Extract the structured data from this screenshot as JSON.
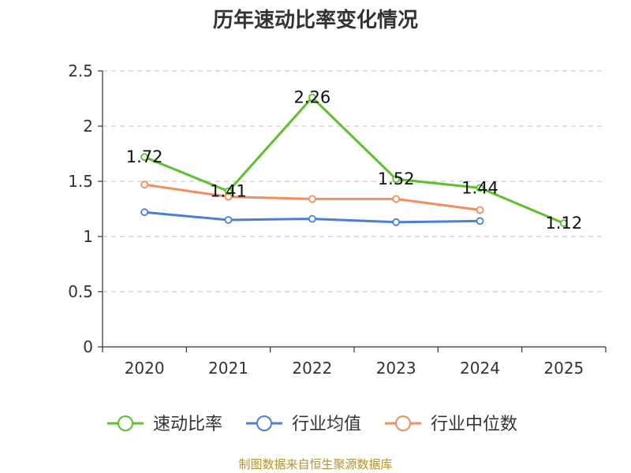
{
  "chart_data": {
    "type": "line",
    "title": "历年速动比率变化情况",
    "categories": [
      "2020",
      "2021",
      "2022",
      "2023",
      "2024",
      "2025"
    ],
    "ylim": [
      0,
      2.5
    ],
    "yticks": [
      "0",
      "0.5",
      "1",
      "1.5",
      "2",
      "2.5"
    ],
    "grid": true,
    "legend_position": "bottom",
    "series": [
      {
        "name": "速动比率",
        "color": "#5cc12a",
        "values": [
          1.72,
          1.41,
          2.26,
          1.52,
          1.44,
          1.12
        ],
        "labels": [
          "1.72",
          "1.41",
          "2.26",
          "1.52",
          "1.44",
          "1.12"
        ]
      },
      {
        "name": "行业均值",
        "color": "#4a7fd9",
        "values": [
          1.22,
          1.15,
          1.16,
          1.13,
          1.14,
          null
        ]
      },
      {
        "name": "行业中位数",
        "color": "#f58c5b",
        "values": [
          1.47,
          1.36,
          1.34,
          1.34,
          1.24,
          null
        ]
      }
    ],
    "source": "制图数据来自恒生聚源数据库"
  }
}
